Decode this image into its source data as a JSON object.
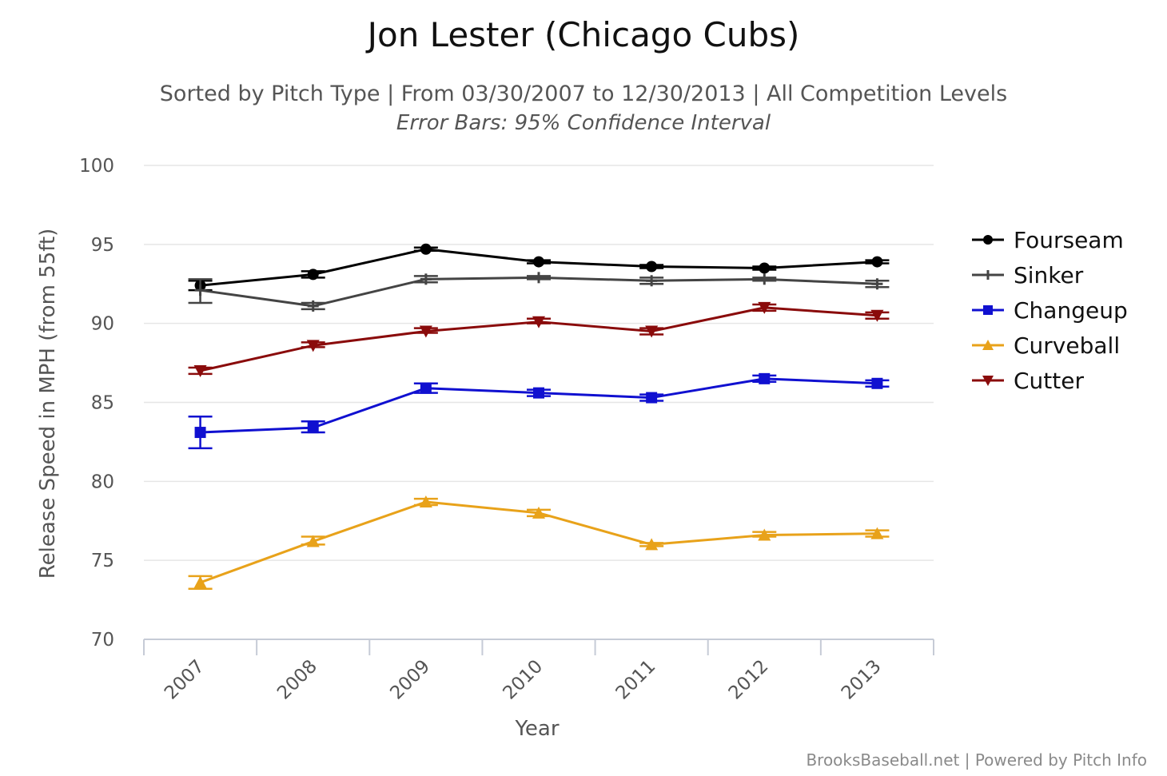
{
  "chart_data": {
    "type": "line",
    "title": "Jon Lester (Chicago Cubs)",
    "subtitle": "Sorted by Pitch Type | From 03/30/2007 to 12/30/2013 | All Competition Levels",
    "subtitle2": "Error Bars: 95% Confidence Interval",
    "xlabel": "Year",
    "ylabel": "Release Speed in MPH (from 55ft)",
    "categories": [
      "2007",
      "2008",
      "2009",
      "2010",
      "2011",
      "2012",
      "2013"
    ],
    "ylim": [
      70,
      100
    ],
    "yticks": [
      70,
      75,
      80,
      85,
      90,
      95,
      100
    ],
    "grid": true,
    "legend_position": "right",
    "credits": "BrooksBaseball.net | Powered by Pitch Info",
    "series": [
      {
        "name": "Fourseam",
        "color": "#000000",
        "marker": "circle",
        "values": [
          92.4,
          93.1,
          94.7,
          93.9,
          93.6,
          93.5,
          93.9
        ],
        "err_low": [
          92.1,
          92.9,
          94.6,
          93.8,
          93.5,
          93.4,
          93.8
        ],
        "err_high": [
          92.7,
          93.3,
          94.8,
          94.0,
          93.7,
          93.6,
          94.0
        ]
      },
      {
        "name": "Sinker",
        "color": "#444444",
        "marker": "plus",
        "values": [
          92.1,
          91.1,
          92.8,
          92.9,
          92.7,
          92.8,
          92.5
        ],
        "err_low": [
          91.3,
          90.9,
          92.6,
          92.8,
          92.5,
          92.7,
          92.3
        ],
        "err_high": [
          92.8,
          91.3,
          93.0,
          93.0,
          92.9,
          92.9,
          92.7
        ]
      },
      {
        "name": "Changeup",
        "color": "#1010d0",
        "marker": "square",
        "values": [
          83.1,
          83.4,
          85.9,
          85.6,
          85.3,
          86.5,
          86.2
        ],
        "err_low": [
          82.1,
          83.1,
          85.6,
          85.4,
          85.1,
          86.3,
          86.0
        ],
        "err_high": [
          84.1,
          83.8,
          86.2,
          85.8,
          85.5,
          86.7,
          86.4
        ]
      },
      {
        "name": "Curveball",
        "color": "#e8a21a",
        "marker": "triangle",
        "values": [
          73.6,
          76.2,
          78.7,
          78.0,
          76.0,
          76.6,
          76.7
        ],
        "err_low": [
          73.2,
          76.0,
          78.5,
          77.8,
          75.9,
          76.5,
          76.5
        ],
        "err_high": [
          74.0,
          76.5,
          78.9,
          78.2,
          76.1,
          76.8,
          76.9
        ]
      },
      {
        "name": "Cutter",
        "color": "#8a0b0b",
        "marker": "triangle-down",
        "values": [
          87.0,
          88.6,
          89.5,
          90.1,
          89.5,
          91.0,
          90.5
        ],
        "err_low": [
          86.8,
          88.5,
          89.4,
          90.0,
          89.3,
          90.8,
          90.3
        ],
        "err_high": [
          87.2,
          88.8,
          89.7,
          90.3,
          89.7,
          91.2,
          90.7
        ]
      }
    ]
  }
}
